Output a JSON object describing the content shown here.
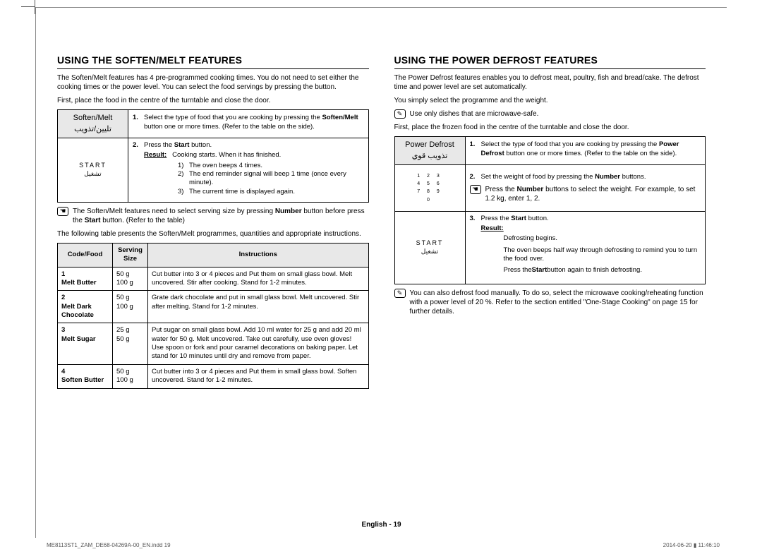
{
  "left": {
    "heading": "USING THE SOFTEN/MELT FEATURES",
    "intro1": "The Soften/Melt features has 4 pre-programmed cooking times. You do not need to set either the cooking times or the power level. You can select the food servings by pressing the button.",
    "intro2": "First, place the food in the centre of the turntable and close the door.",
    "btn_label_en": "Soften/Melt",
    "btn_label_ar": "تليين/تذويب",
    "start_en": "START",
    "start_ar": "تشغيل",
    "step1_a": "Select the type of food that you are cooking by pressing the ",
    "step1_b": "Soften/Melt",
    "step1_c": " button one or more times. (Refer to the table on the side).",
    "step2_a": "Press the ",
    "step2_b": "Start",
    "step2_c": " button.",
    "result_lbl": "Result:",
    "result_txt": "Cooking starts. When it has finished.",
    "r1": "The oven beeps 4 times.",
    "r2": "The end reminder signal will beep 1 time (once every minute).",
    "r3": "The current time is displayed again.",
    "note1_a": "The Soften/Melt features need to select serving size by pressing ",
    "note1_b": "Number",
    "note1_c": " button before press the ",
    "note1_d": "Start",
    "note1_e": " button. (Refer to the table)",
    "table_intro": "The following table presents the Soften/Melt programmes, quantities and appropriate instructions.",
    "th1": "Code/Food",
    "th2": "Serving Size",
    "th3": "Instructions",
    "rows": [
      {
        "code": "1",
        "food": "Melt Butter",
        "s1": "50 g",
        "s2": "100 g",
        "instr": "Cut butter into 3 or 4 pieces and Put them on small glass bowl. Melt uncovered. Stir after cooking. Stand for 1-2 minutes."
      },
      {
        "code": "2",
        "food": "Melt Dark Chocolate",
        "s1": "50 g",
        "s2": "100 g",
        "instr": "Grate dark chocolate and put in small glass bowl. Melt uncovered. Stir after melting. Stand for 1-2 minutes."
      },
      {
        "code": "3",
        "food": "Melt Sugar",
        "s1": "25 g",
        "s2": "50 g",
        "instr": "Put sugar on small glass bowl. Add 10 ml water for 25 g and add 20 ml water for 50 g. Melt uncovered. Take out carefully, use oven gloves! Use spoon or fork and pour caramel decorations on baking paper. Let stand for 10 minutes until dry and remove from paper."
      },
      {
        "code": "4",
        "food": "Soften Butter",
        "s1": "50 g",
        "s2": "100 g",
        "instr": "Cut butter into 3 or 4 pieces and Put them in small glass bowl. Soften uncovered. Stand for 1-2 minutes."
      }
    ]
  },
  "right": {
    "heading": "USING THE POWER DEFROST FEATURES",
    "intro1": "The Power Defrost features enables you to defrost meat, poultry, fish and bread/cake. The defrost time and power level are set automatically.",
    "intro2": "You simply select the programme and the weight.",
    "note_top": "Use only dishes that are microwave-safe.",
    "intro3": "First, place the frozen food in the centre of the turntable and close the door.",
    "btn_label_en": "Power Defrost",
    "btn_label_ar": "تذويب قوي",
    "start_en": "START",
    "start_ar": "تشغيل",
    "step1_a": "Select the type of food that you are cooking by pressing the ",
    "step1_b": "Power Defrost",
    "step1_c": " button one or more times. (Refer to the table on the side).",
    "step2_a": "Set the weight of food by pressing the ",
    "step2_b": "Number",
    "step2_c": " buttons.",
    "step2_note_a": "Press the ",
    "step2_note_b": "Number",
    "step2_note_c": " buttons to select the weight. For example, to set 1.2 kg, enter 1, 2.",
    "step3_a": "Press the ",
    "step3_b": "Start",
    "step3_c": " button.",
    "result_lbl": "Result:",
    "b1": "Defrosting begins.",
    "b2": "The oven beeps half way through defrosting to remind you to turn the food over.",
    "b3_a": "Press the ",
    "b3_b": "Start",
    "b3_c": " button again to finish defrosting.",
    "note_bottom": "You can also defrost food manually. To do so, select the microwave cooking/reheating function with a power level of 20 %. Refer to the section entitled \"One-Stage Cooking\" on page 15 for further details."
  },
  "footer": {
    "center": "English - 19",
    "left": "ME8113ST1_ZAM_DE68-04269A-00_EN.indd   19",
    "right": "2014-06-20   ▮ 11:46:10"
  }
}
